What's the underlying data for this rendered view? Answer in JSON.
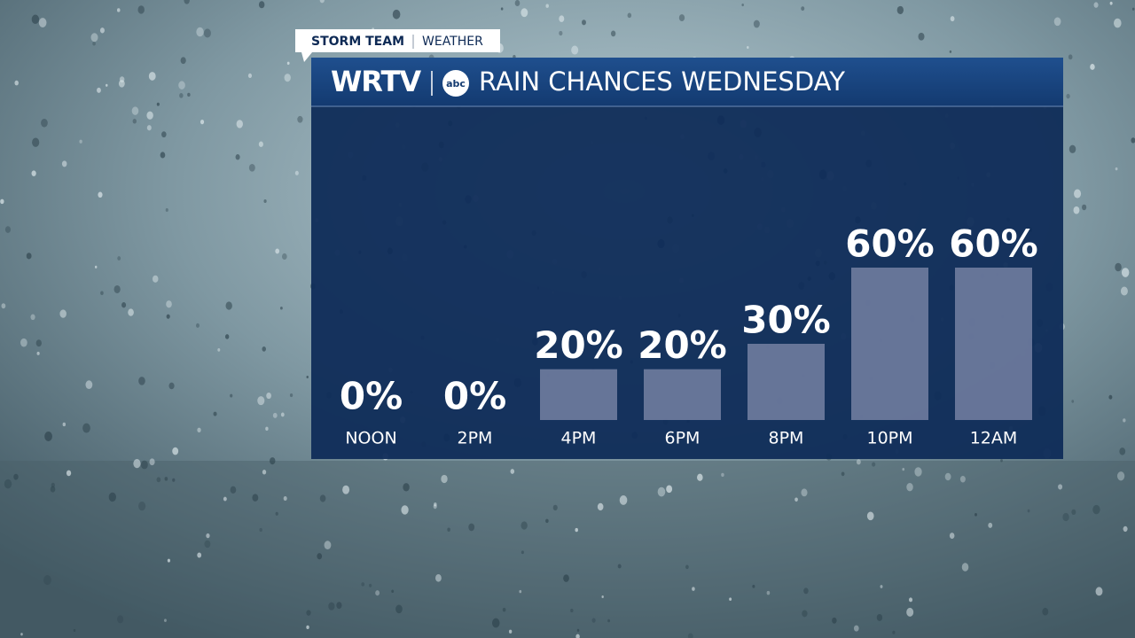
{
  "branding": {
    "tag": "STORM TEAM",
    "section": "WEATHER",
    "station": "WRTV",
    "network": "abc"
  },
  "chart_data": {
    "type": "bar",
    "title": "RAIN CHANCES WEDNESDAY",
    "categories": [
      "NOON",
      "2PM",
      "4PM",
      "6PM",
      "8PM",
      "10PM",
      "12AM"
    ],
    "values": [
      0,
      0,
      20,
      20,
      30,
      60,
      60
    ],
    "value_labels": [
      "0%",
      "0%",
      "20%",
      "20%",
      "30%",
      "60%",
      "60%"
    ],
    "color": "#6f7c9e"
  }
}
